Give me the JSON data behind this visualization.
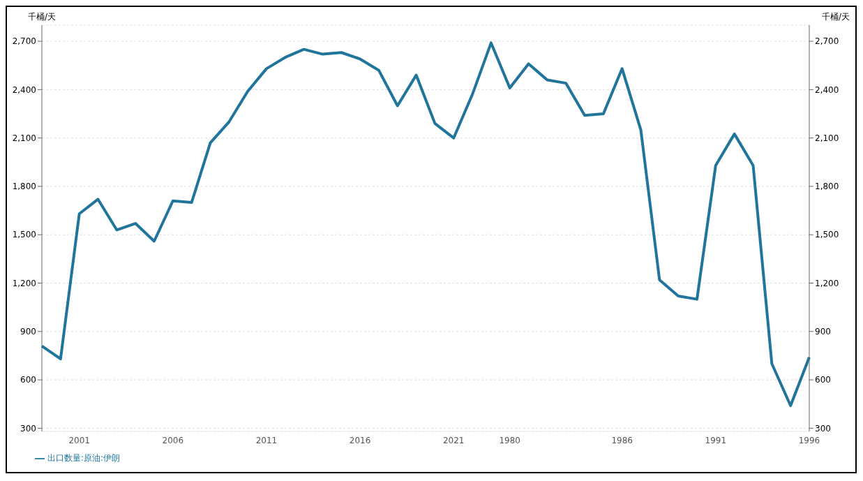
{
  "chart_data": {
    "type": "line",
    "ylabel": "千桶/天",
    "y2label": "千桶/天",
    "categories": [
      null,
      null,
      "2001",
      null,
      null,
      null,
      null,
      "2006",
      null,
      null,
      null,
      null,
      "2011",
      null,
      null,
      null,
      null,
      "2016",
      null,
      null,
      null,
      null,
      "2021",
      null,
      null,
      "1980",
      null,
      null,
      null,
      null,
      null,
      "1986",
      null,
      null,
      null,
      null,
      "1991",
      null,
      null,
      null,
      null,
      "1996"
    ],
    "series": [
      {
        "name": "出口数量:原油:伊朗",
        "color": "#21759b",
        "values": [
          810,
          730,
          1630,
          1720,
          1530,
          1570,
          1460,
          1710,
          1700,
          2070,
          2200,
          2390,
          2530,
          2600,
          2650,
          2620,
          2630,
          2590,
          2520,
          2300,
          2490,
          2190,
          2100,
          2370,
          2690,
          2410,
          2560,
          2460,
          2440,
          2240,
          2250,
          2530,
          2150,
          1220,
          1120,
          1100,
          1930,
          2125,
          1930,
          700,
          440,
          740
        ]
      }
    ],
    "ylim": [
      280,
      2800
    ],
    "yticks": [
      300,
      600,
      900,
      {
        "value": 1200,
        "label": "1,200"
      },
      {
        "value": 1500,
        "label": "1,500"
      },
      {
        "value": 1800,
        "label": "1,800"
      },
      {
        "value": 2100,
        "label": "2,100"
      },
      {
        "value": 2400,
        "label": "2,400"
      },
      {
        "value": 2700,
        "label": "2,700"
      }
    ],
    "y2lim": [
      280,
      2800
    ],
    "y2ticks": [
      300,
      600,
      900,
      {
        "value": 1200,
        "label": "1,200"
      },
      {
        "value": 1500,
        "label": "1,500"
      },
      {
        "value": 1800,
        "label": "1,800"
      },
      {
        "value": 2100,
        "label": "2,100"
      },
      {
        "value": 2400,
        "label": "2,400"
      },
      {
        "value": 2700,
        "label": "2,700"
      }
    ],
    "grid": "y",
    "legend": "bottom left",
    "marker": "none",
    "line_style": "solid"
  }
}
